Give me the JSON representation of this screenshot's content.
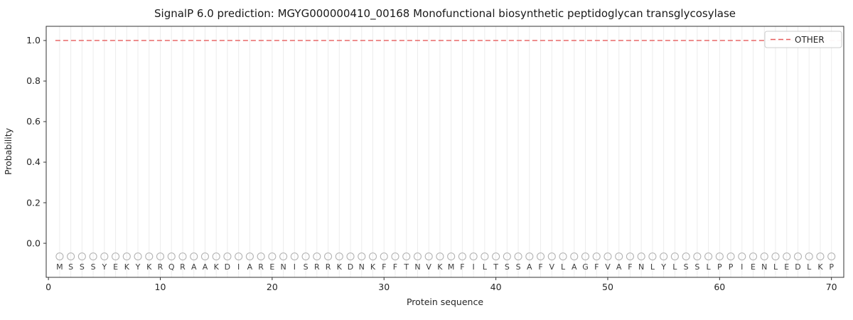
{
  "chart_data": {
    "type": "line",
    "title": "SignalP 6.0 prediction: MGYG000000410_00168 Monofunctional biosynthetic peptidoglycan transglycosylase",
    "xlabel": "Protein sequence",
    "ylabel": "Probability",
    "xlim": [
      -0.2,
      71.1
    ],
    "ylim": [
      -0.168,
      1.07
    ],
    "x_ticks": [
      0,
      10,
      20,
      30,
      40,
      50,
      60,
      70
    ],
    "y_ticks": [
      0.0,
      0.2,
      0.4,
      0.6,
      0.8,
      1.0
    ],
    "y_tick_labels": [
      "0.0",
      "0.2",
      "0.4",
      "0.6",
      "0.8",
      "1.0"
    ],
    "grid": "vertical-line-per-residue",
    "grid_color": "#ececec",
    "spine_color": "#333333",
    "letter_color": "#3d3d3d",
    "sequence": "MSSSYEKYKRQRAAKDIARENISRRKDNKFFTNVKMFILTSSAFVLAGFVAFNLYLSSLPPIENLEDLKP",
    "residue_markers": {
      "shape": "open-circle",
      "color": "#b3b3b3",
      "y": -0.065
    },
    "series": [
      {
        "name": "OTHER",
        "type": "line",
        "line_style": "dashed",
        "color": "#e65c5c",
        "x_start": 1,
        "x_end": 70,
        "y_constant": 1.0
      }
    ],
    "legend": {
      "position": "upper-right",
      "entries": [
        {
          "label": "OTHER",
          "color": "#e65c5c",
          "line_style": "dashed"
        }
      ]
    }
  }
}
